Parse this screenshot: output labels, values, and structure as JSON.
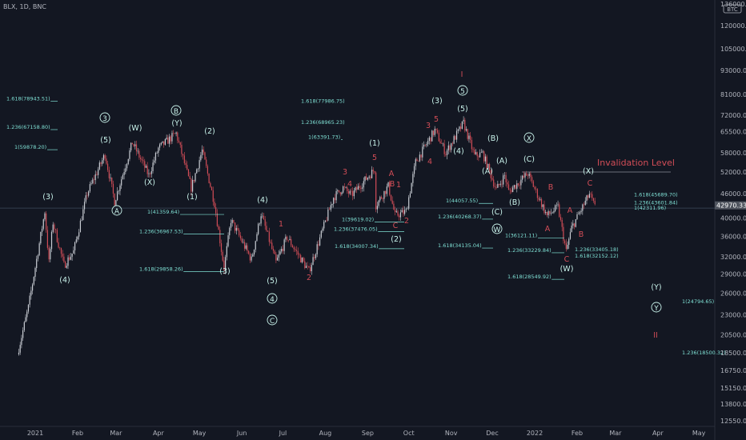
{
  "header": {
    "symbol": "BLX, 1D, BNC",
    "currency": "BTC"
  },
  "colors": {
    "bg": "#131722",
    "up": "#c9cdd4",
    "down": "#d24d57",
    "wave": "#c8f2ea",
    "fib": "#7fe0d4",
    "hline": "#4a5064"
  },
  "chart_data": {
    "type": "candlestick",
    "y_scale": "log",
    "ylim": [
      11200,
      136000
    ],
    "x_ticks": [
      "2021",
      "Feb",
      "Mar",
      "Apr",
      "May",
      "Jun",
      "Jul",
      "Aug",
      "Sep",
      "Oct",
      "Nov",
      "Dec",
      "2022",
      "Feb",
      "Mar",
      "Apr",
      "May"
    ],
    "y_ticks": [
      "120000.00",
      "105000.00",
      "93000.00",
      "81000.00",
      "72000.00",
      "65500.00",
      "58000.00",
      "52000.00",
      "46000.00",
      "40000.00",
      "36000.00",
      "32000.00",
      "29000.00",
      "26000.00",
      "23000.00",
      "20500.00",
      "18500.00",
      "16750.00",
      "15150.00",
      "13800.00",
      "12550.00"
    ],
    "y_tick_values": [
      120000,
      105000,
      93000,
      81000,
      72000,
      65500,
      58000,
      52000,
      46000,
      40000,
      36000,
      32000,
      29000,
      26000,
      23000,
      20500,
      18500,
      16750,
      15150,
      13800,
      12550
    ],
    "y_top_label": "136000.00",
    "current_price": "42970.33",
    "current_price_value": 42970,
    "price_path": [
      [
        "2020-12-20",
        19000
      ],
      [
        "2020-12-27",
        24000
      ],
      [
        "2021-01-08",
        41500
      ],
      [
        "2021-01-11",
        31000
      ],
      [
        "2021-01-14",
        39000
      ],
      [
        "2021-01-22",
        30500
      ],
      [
        "2021-01-29",
        33000
      ],
      [
        "2021-02-08",
        46000
      ],
      [
        "2021-02-21",
        57500
      ],
      [
        "2021-02-28",
        44000
      ],
      [
        "2021-03-13",
        61500
      ],
      [
        "2021-03-25",
        51000
      ],
      [
        "2021-04-01",
        59500
      ],
      [
        "2021-04-14",
        64800
      ],
      [
        "2021-04-25",
        47500
      ],
      [
        "2021-05-03",
        58800
      ],
      [
        "2021-05-12",
        43500
      ],
      [
        "2021-05-19",
        30000
      ],
      [
        "2021-05-24",
        39500
      ],
      [
        "2021-06-08",
        31500
      ],
      [
        "2021-06-15",
        41000
      ],
      [
        "2021-06-26",
        31000
      ],
      [
        "2021-07-04",
        35800
      ],
      [
        "2021-07-20",
        29500
      ],
      [
        "2021-08-07",
        45000
      ],
      [
        "2021-08-14",
        47500
      ],
      [
        "2021-08-20",
        45500
      ],
      [
        "2021-09-06",
        52800
      ],
      [
        "2021-09-07",
        43000
      ],
      [
        "2021-09-16",
        48000
      ],
      [
        "2021-09-21",
        40500
      ],
      [
        "2021-09-29",
        41500
      ],
      [
        "2021-10-06",
        55000
      ],
      [
        "2021-10-20",
        66000
      ],
      [
        "2021-10-28",
        58000
      ],
      [
        "2021-11-10",
        68800
      ],
      [
        "2021-11-18",
        57000
      ],
      [
        "2021-11-24",
        57800
      ],
      [
        "2021-12-04",
        47000
      ],
      [
        "2021-12-10",
        51000
      ],
      [
        "2021-12-13",
        46500
      ],
      [
        "2021-12-27",
        51500
      ],
      [
        "2022-01-10",
        40500
      ],
      [
        "2022-01-18",
        42500
      ],
      [
        "2022-01-24",
        33000
      ],
      [
        "2022-01-28",
        37800
      ],
      [
        "2022-02-10",
        45800
      ],
      [
        "2022-02-14",
        42500
      ]
    ],
    "horizontal_lines": [
      {
        "label": "Invalidation Level",
        "value": 52000
      },
      {
        "label": "",
        "value": 42300
      }
    ],
    "fib_levels": [
      {
        "text": "1.618(78943.51)",
        "value": 78943.51
      },
      {
        "text": "1.236(67158.80)",
        "value": 67158.8
      },
      {
        "text": "1(59878.20)",
        "value": 59878.2
      },
      {
        "text": "1(41359.64)",
        "value": 41359.64
      },
      {
        "text": "1.236(36967.53)",
        "value": 36967.53
      },
      {
        "text": "1.618(29858.26)",
        "value": 29858.26
      },
      {
        "text": "1.618(77986.75)",
        "value": 77986.75
      },
      {
        "text": "1.236(68965.23)",
        "value": 68965.23
      },
      {
        "text": "1(63391.73)",
        "value": 63391.73
      },
      {
        "text": "1(39619.02)",
        "value": 39619.02
      },
      {
        "text": "1.236(37476.05)",
        "value": 37476.05
      },
      {
        "text": "1.618(34007.34)",
        "value": 34007.34
      },
      {
        "text": "1(44057.55)",
        "value": 44057.55
      },
      {
        "text": "1.236(40268.37)",
        "value": 40268.37
      },
      {
        "text": "1.618(34135.04)",
        "value": 34135.04
      },
      {
        "text": "1(36121.11)",
        "value": 36121.11
      },
      {
        "text": "1.236(33229.84)",
        "value": 33229.84
      },
      {
        "text": "1.618(28549.92)",
        "value": 28549.92
      },
      {
        "text": "1.236(33405.18)",
        "value": 33405.18
      },
      {
        "text": "1.618(32152.12)",
        "value": 32152.12
      },
      {
        "text": "1.618(45689.70)",
        "value": 45689.7
      },
      {
        "text": "1.236(43601.84)",
        "value": 43601.84
      },
      {
        "text": "1(42311.96)",
        "value": 42311.96
      },
      {
        "text": "1(24794.65)",
        "value": 24794.65
      },
      {
        "text": "1.236(18500.32)",
        "value": 18500.32
      }
    ],
    "wave_labels": [
      {
        "text": "(3)",
        "color": "cyan"
      },
      {
        "text": "(4)",
        "color": "cyan"
      },
      {
        "text": "(5)",
        "color": "cyan"
      },
      {
        "text": "3",
        "color": "cyan",
        "circled": true
      },
      {
        "text": "A",
        "color": "cyan",
        "circled": true
      },
      {
        "text": "(W)",
        "color": "cyan"
      },
      {
        "text": "(X)",
        "color": "cyan"
      },
      {
        "text": "(Y)",
        "color": "cyan"
      },
      {
        "text": "B",
        "color": "cyan",
        "circled": true
      },
      {
        "text": "(1)",
        "color": "cyan"
      },
      {
        "text": "(2)",
        "color": "cyan"
      },
      {
        "text": "(3)",
        "color": "cyan"
      },
      {
        "text": "(4)",
        "color": "cyan"
      },
      {
        "text": "(5)",
        "color": "cyan"
      },
      {
        "text": "4",
        "color": "cyan",
        "circled": true
      },
      {
        "text": "C",
        "color": "cyan",
        "circled": true
      },
      {
        "text": "1",
        "color": "red"
      },
      {
        "text": "2",
        "color": "red"
      },
      {
        "text": "3",
        "color": "red"
      },
      {
        "text": "4",
        "color": "red"
      },
      {
        "text": "5",
        "color": "red"
      },
      {
        "text": "A",
        "color": "red"
      },
      {
        "text": "B",
        "color": "red"
      },
      {
        "text": "C",
        "color": "red"
      },
      {
        "text": "1",
        "color": "red"
      },
      {
        "text": "2",
        "color": "red"
      },
      {
        "text": "(1)",
        "color": "cyan"
      },
      {
        "text": "(2)",
        "color": "cyan"
      },
      {
        "text": "3",
        "color": "red"
      },
      {
        "text": "4",
        "color": "red"
      },
      {
        "text": "5",
        "color": "red"
      },
      {
        "text": "(3)",
        "color": "cyan"
      },
      {
        "text": "(4)",
        "color": "cyan"
      },
      {
        "text": "(5)",
        "color": "cyan"
      },
      {
        "text": "5",
        "color": "cyan",
        "circled": true
      },
      {
        "text": "I",
        "color": "red"
      },
      {
        "text": "(A)",
        "color": "cyan"
      },
      {
        "text": "(B)",
        "color": "cyan"
      },
      {
        "text": "(C)",
        "color": "cyan"
      },
      {
        "text": "W",
        "color": "cyan",
        "circled": true
      },
      {
        "text": "(A)",
        "color": "cyan"
      },
      {
        "text": "(B)",
        "color": "cyan"
      },
      {
        "text": "(C)",
        "color": "cyan"
      },
      {
        "text": "X",
        "color": "cyan",
        "circled": true
      },
      {
        "text": "A",
        "color": "red"
      },
      {
        "text": "B",
        "color": "red"
      },
      {
        "text": "C",
        "color": "red"
      },
      {
        "text": "(W)",
        "color": "cyan"
      },
      {
        "text": "A",
        "color": "red"
      },
      {
        "text": "B",
        "color": "red"
      },
      {
        "text": "C",
        "color": "red"
      },
      {
        "text": "(X)",
        "color": "cyan"
      },
      {
        "text": "(Y)",
        "color": "cyan"
      },
      {
        "text": "Y",
        "color": "cyan",
        "circled": true
      },
      {
        "text": "II",
        "color": "red"
      }
    ]
  }
}
